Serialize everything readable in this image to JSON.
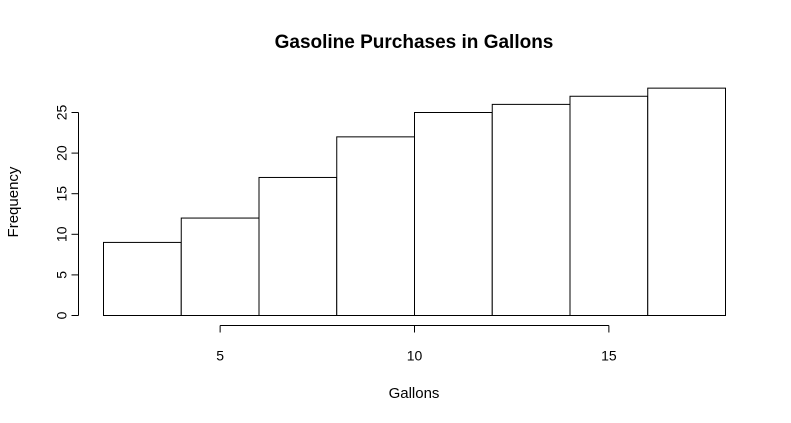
{
  "chart_data": {
    "type": "bar",
    "title": "Gasoline Purchases in Gallons",
    "xlabel": "Gallons",
    "ylabel": "Frequency",
    "bins": [
      {
        "x0": 2,
        "x1": 4,
        "value": 9
      },
      {
        "x0": 4,
        "x1": 6,
        "value": 12
      },
      {
        "x0": 6,
        "x1": 8,
        "value": 17
      },
      {
        "x0": 8,
        "x1": 10,
        "value": 22
      },
      {
        "x0": 10,
        "x1": 12,
        "value": 25
      },
      {
        "x0": 12,
        "x1": 14,
        "value": 26
      },
      {
        "x0": 14,
        "x1": 16,
        "value": 27
      },
      {
        "x0": 16,
        "x1": 18,
        "value": 28
      }
    ],
    "xlim": [
      2,
      18
    ],
    "ylim": [
      0,
      28
    ],
    "xticks": [
      5,
      10,
      15
    ],
    "yticks": [
      0,
      5,
      10,
      15,
      20,
      25
    ],
    "grid": false,
    "bar_fill": "#ffffff",
    "bar_stroke": "#000000"
  }
}
